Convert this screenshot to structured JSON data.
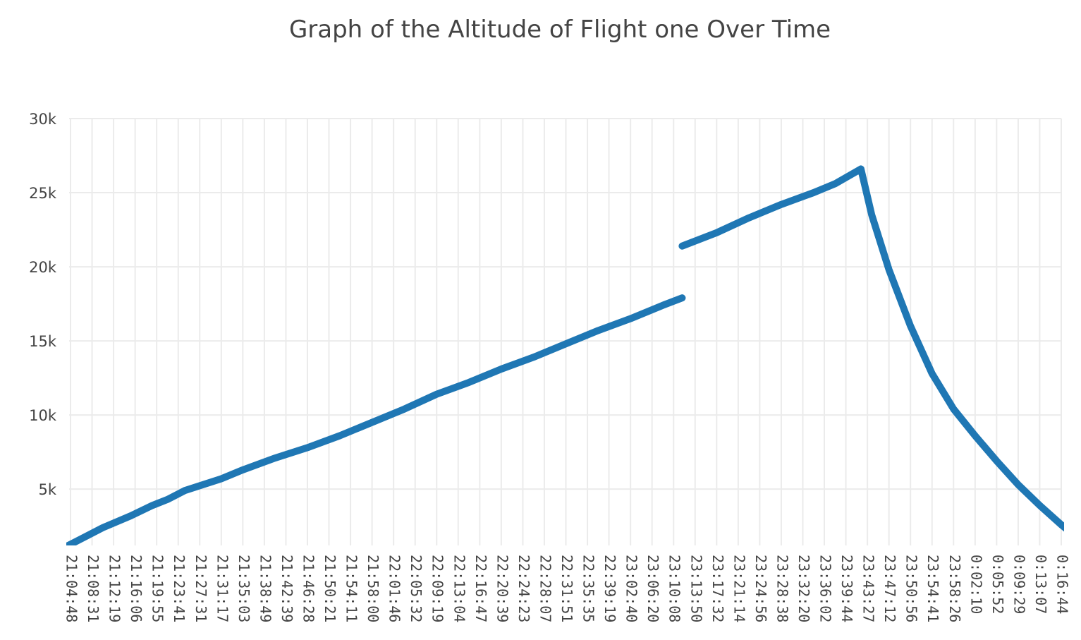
{
  "chart_data": {
    "type": "line",
    "title": "Graph of the Altitude of Flight one Over Time",
    "xlabel": "",
    "ylabel": "",
    "grid": true,
    "legend": "none",
    "ylim": [
      1200,
      30000
    ],
    "y_ticks": [
      {
        "value": 5000,
        "label": "5k"
      },
      {
        "value": 10000,
        "label": "10k"
      },
      {
        "value": 15000,
        "label": "15k"
      },
      {
        "value": 20000,
        "label": "20k"
      },
      {
        "value": 25000,
        "label": "25k"
      },
      {
        "value": 30000,
        "label": "30k"
      }
    ],
    "x_tick_labels": [
      "21:04:48",
      "21:08:31",
      "21:12:19",
      "21:16:06",
      "21:19:55",
      "21:23:41",
      "21:27:31",
      "21:31:17",
      "21:35:03",
      "21:38:49",
      "21:42:39",
      "21:46:28",
      "21:50:21",
      "21:54:11",
      "21:58:00",
      "22:01:46",
      "22:05:32",
      "22:09:19",
      "22:13:04",
      "22:16:47",
      "22:20:39",
      "22:24:23",
      "22:28:07",
      "22:31:51",
      "22:35:35",
      "22:39:19",
      "23:02:40",
      "23:06:20",
      "23:10:08",
      "23:13:50",
      "23:17:32",
      "23:21:14",
      "23:24:56",
      "23:28:38",
      "23:32:20",
      "23:36:02",
      "23:39:44",
      "23:43:27",
      "23:47:12",
      "23:50:56",
      "23:54:41",
      "23:58:26",
      "0:02:10",
      "0:05:52",
      "0:09:29",
      "0:13:07",
      "0:16:44"
    ],
    "series": [
      {
        "color": "#1f77b4",
        "segments": [
          [
            [
              -0.1,
              1200
            ],
            [
              0.3,
              1500
            ],
            [
              1.5,
              2400
            ],
            [
              2.8,
              3200
            ],
            [
              3.8,
              3900
            ],
            [
              4.5,
              4300
            ],
            [
              5.3,
              4900
            ],
            [
              7.0,
              5700
            ],
            [
              8.0,
              6300
            ],
            [
              9.5,
              7100
            ],
            [
              11.0,
              7800
            ],
            [
              12.5,
              8600
            ],
            [
              14.0,
              9500
            ],
            [
              15.5,
              10400
            ],
            [
              17.0,
              11400
            ],
            [
              18.5,
              12200
            ],
            [
              20.0,
              13100
            ],
            [
              21.5,
              13900
            ],
            [
              23.0,
              14800
            ],
            [
              24.5,
              15700
            ],
            [
              26.0,
              16500
            ],
            [
              27.5,
              17400
            ],
            [
              28.4,
              17900
            ]
          ],
          [
            [
              28.4,
              21400
            ],
            [
              30.0,
              22300
            ],
            [
              31.5,
              23300
            ],
            [
              33.0,
              24200
            ],
            [
              34.5,
              25000
            ],
            [
              35.5,
              25600
            ],
            [
              36.7,
              26600
            ],
            [
              37.2,
              23500
            ],
            [
              38.0,
              19800
            ],
            [
              39.0,
              16000
            ],
            [
              40.0,
              12800
            ],
            [
              41.0,
              10400
            ],
            [
              42.0,
              8600
            ],
            [
              43.0,
              6900
            ],
            [
              44.0,
              5300
            ],
            [
              45.0,
              3900
            ],
            [
              46.0,
              2600
            ],
            [
              47.0,
              1400
            ],
            [
              47.2,
              1200
            ]
          ]
        ]
      }
    ]
  }
}
